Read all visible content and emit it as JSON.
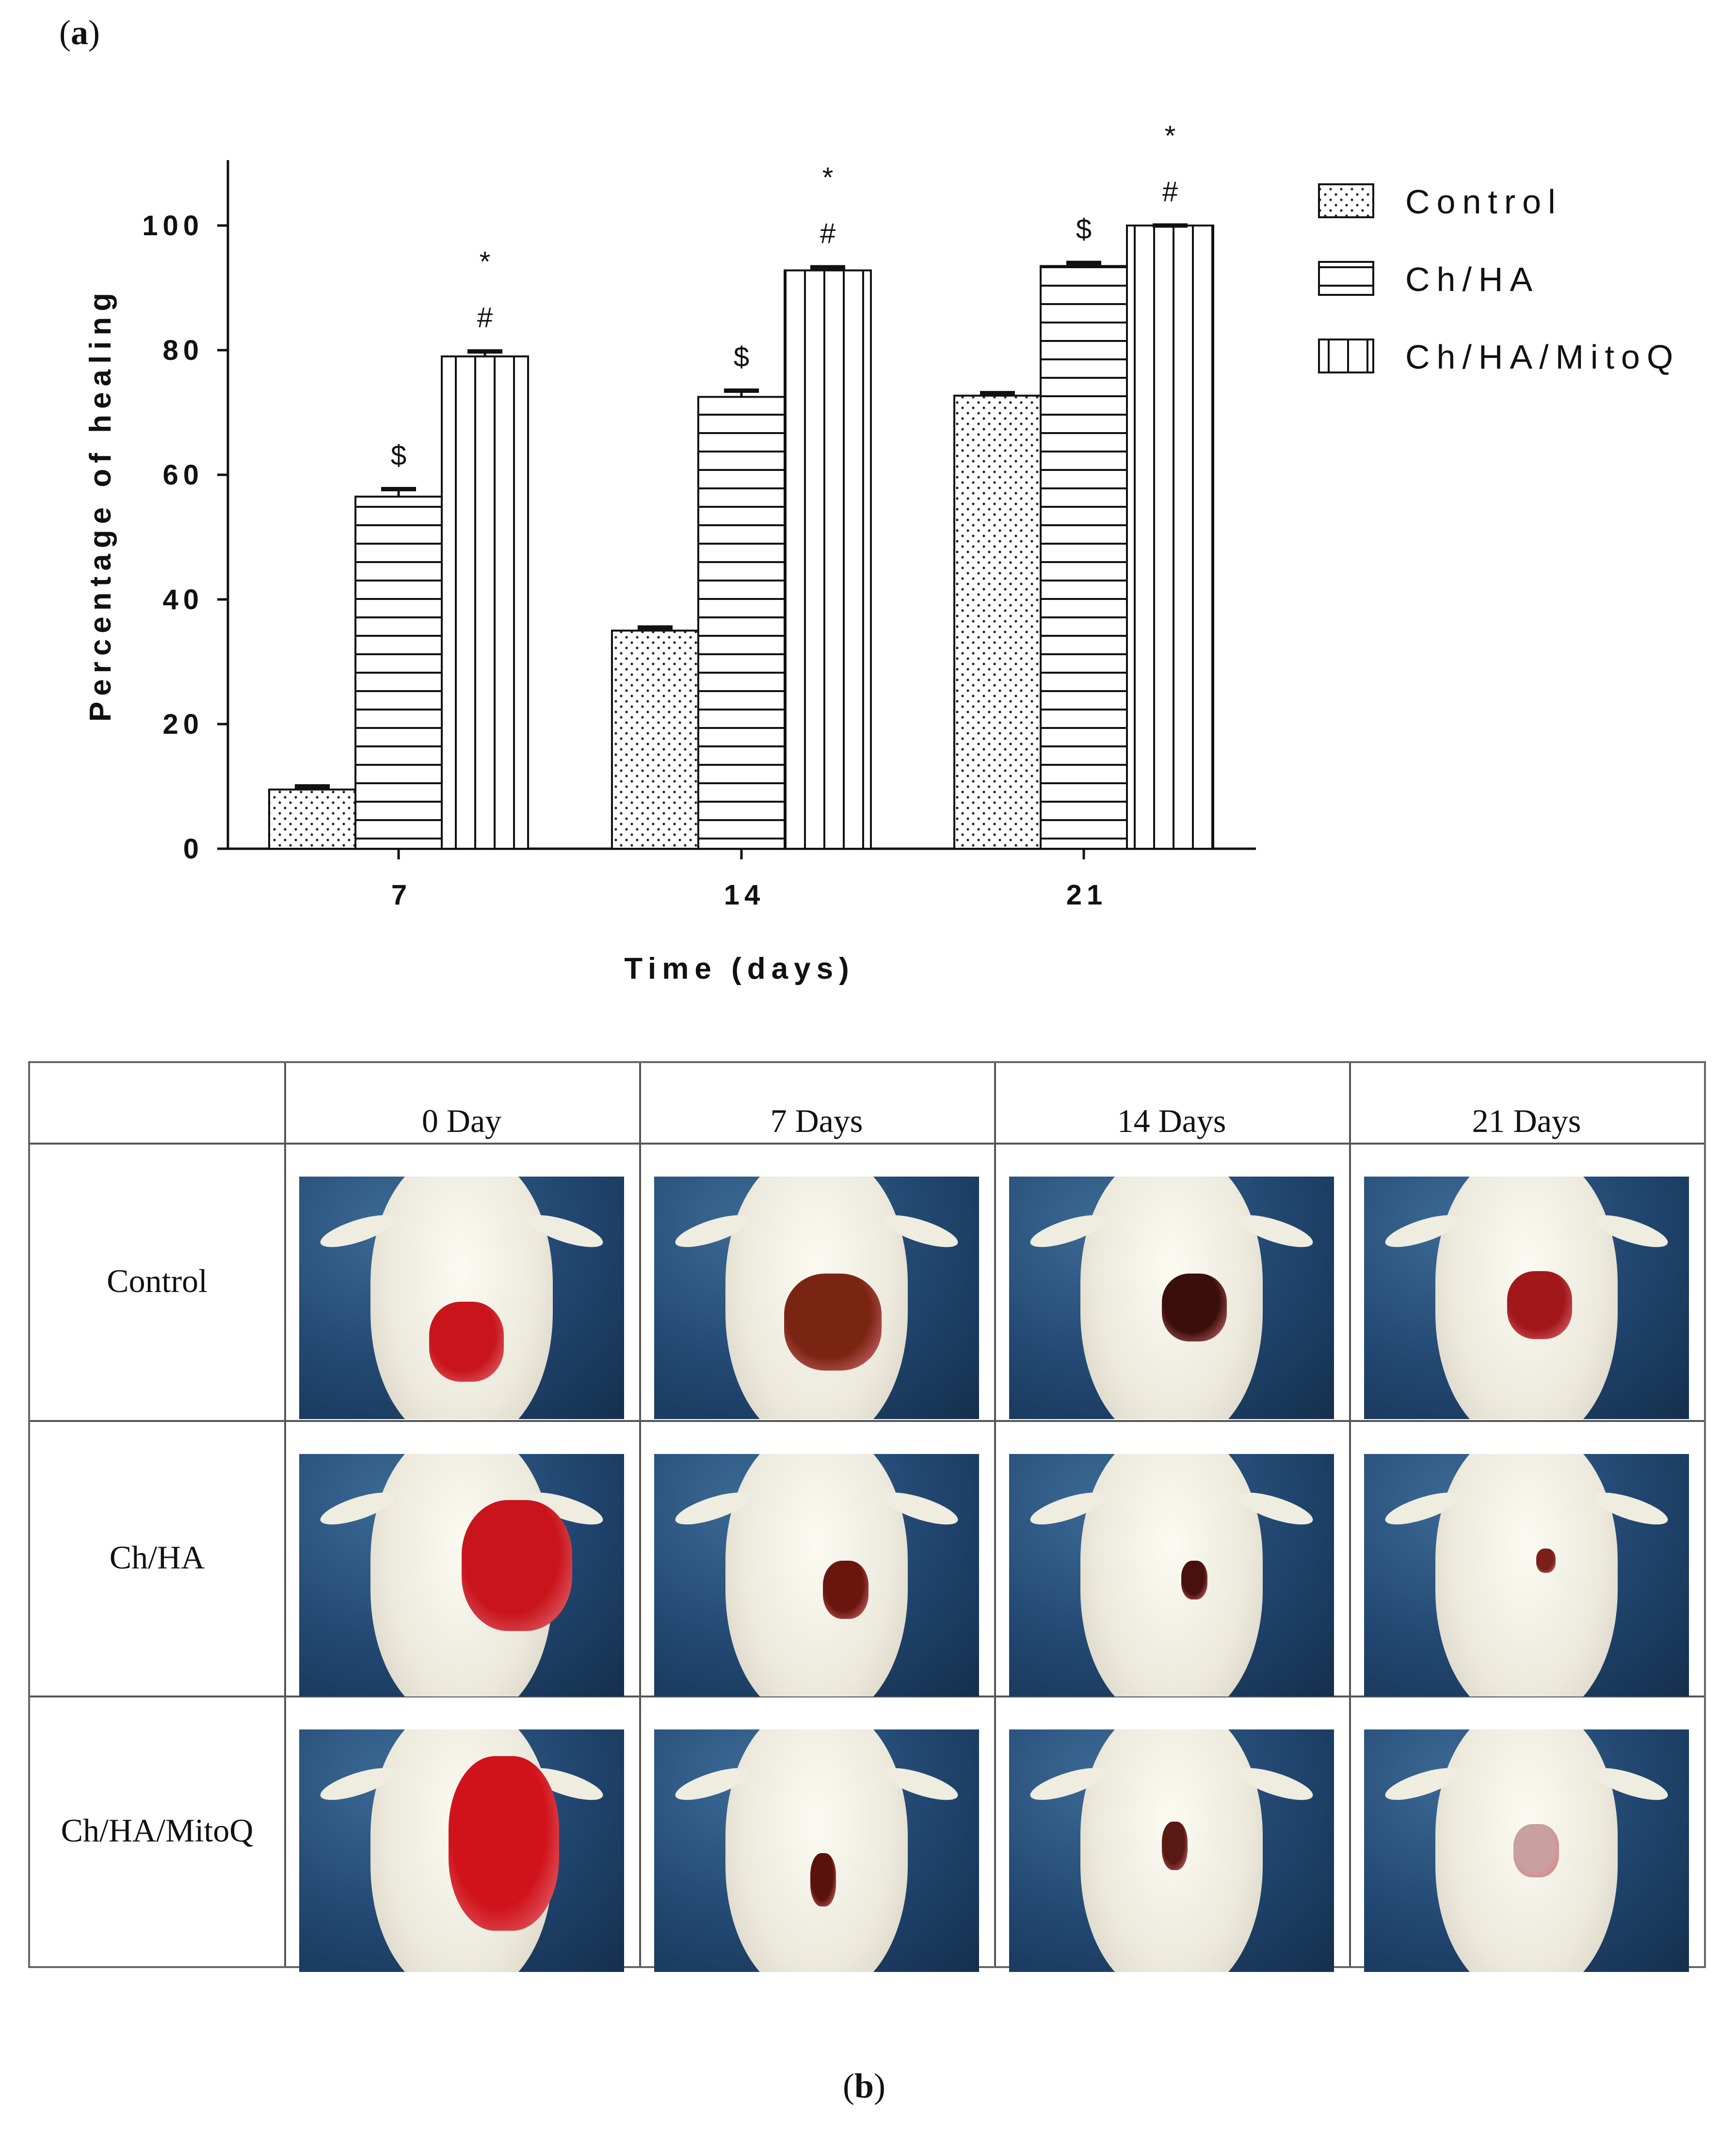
{
  "panel_a_label": {
    "open": "(",
    "letter": "a",
    "close": ")"
  },
  "panel_b_label": {
    "open": "(",
    "letter": "b",
    "close": ")"
  },
  "chart_data": {
    "type": "bar",
    "title": "",
    "xlabel": "Time (days)",
    "ylabel": "Percentage of healing",
    "ylim": [
      0,
      110
    ],
    "yticks": [
      "0",
      "20",
      "40",
      "60",
      "80",
      "100"
    ],
    "categories": [
      "7",
      "14",
      "21"
    ],
    "series": [
      {
        "name": "Control",
        "pattern": "dots",
        "values": [
          9.5,
          35,
          72.7
        ],
        "errors": [
          0.5,
          0.5,
          0.4
        ]
      },
      {
        "name": "Ch/HA",
        "pattern": "horizontal-lines",
        "values": [
          56.5,
          72.5,
          93.5
        ],
        "errors": [
          1.2,
          1.0,
          0.5
        ]
      },
      {
        "name": "Ch/HA/MitoQ",
        "pattern": "vertical-lines",
        "values": [
          79,
          92.8,
          100
        ],
        "errors": [
          0.8,
          0.5,
          0.0
        ]
      }
    ],
    "annotations": [
      {
        "category": "7",
        "series": "Ch/HA",
        "marks": [
          "$"
        ]
      },
      {
        "category": "7",
        "series": "Ch/HA/MitoQ",
        "marks": [
          "#",
          "*"
        ]
      },
      {
        "category": "14",
        "series": "Ch/HA",
        "marks": [
          "$"
        ]
      },
      {
        "category": "14",
        "series": "Ch/HA/MitoQ",
        "marks": [
          "#",
          "*"
        ]
      },
      {
        "category": "21",
        "series": "Ch/HA",
        "marks": [
          "$"
        ]
      },
      {
        "category": "21",
        "series": "Ch/HA/MitoQ",
        "marks": [
          "#",
          "*"
        ]
      }
    ],
    "legend_position": "top-right"
  },
  "table": {
    "columns": [
      "0 Day",
      "7 Days",
      "14 Days",
      "21 Days"
    ],
    "rows": [
      "Control",
      "Ch/HA",
      "Ch/HA/MitoQ"
    ],
    "wound_colors": [
      "#b3161b",
      "#7a2412",
      "#3a0e0a",
      "#a2171a"
    ]
  }
}
